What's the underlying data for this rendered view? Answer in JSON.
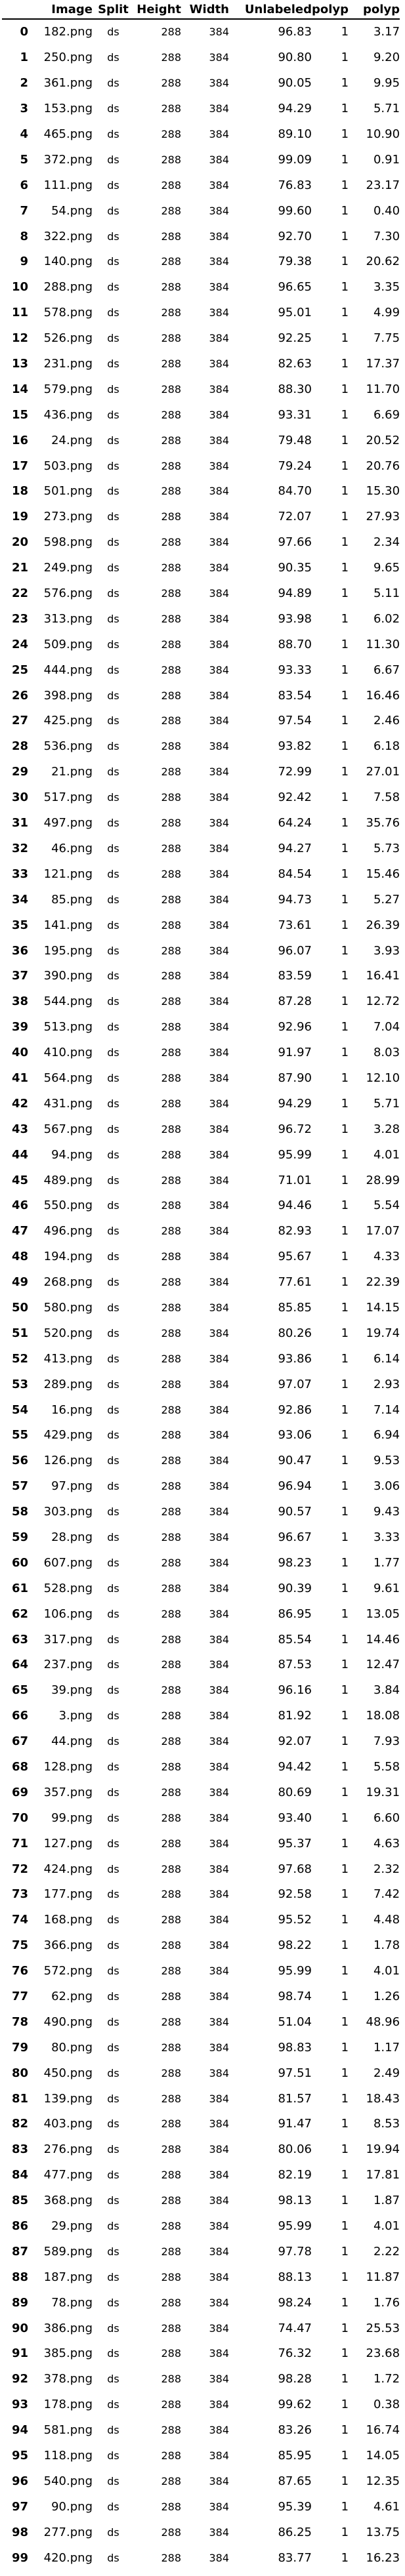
{
  "table": {
    "columns": [
      "",
      "Image",
      "Split",
      "Height",
      "Width",
      "Unlabeled",
      "polyp",
      "polyp"
    ],
    "rows": [
      [
        "0",
        "182.png",
        "ds",
        "288",
        "384",
        "96.83",
        "1",
        "3.17"
      ],
      [
        "1",
        "250.png",
        "ds",
        "288",
        "384",
        "90.80",
        "1",
        "9.20"
      ],
      [
        "2",
        "361.png",
        "ds",
        "288",
        "384",
        "90.05",
        "1",
        "9.95"
      ],
      [
        "3",
        "153.png",
        "ds",
        "288",
        "384",
        "94.29",
        "1",
        "5.71"
      ],
      [
        "4",
        "465.png",
        "ds",
        "288",
        "384",
        "89.10",
        "1",
        "10.90"
      ],
      [
        "5",
        "372.png",
        "ds",
        "288",
        "384",
        "99.09",
        "1",
        "0.91"
      ],
      [
        "6",
        "111.png",
        "ds",
        "288",
        "384",
        "76.83",
        "1",
        "23.17"
      ],
      [
        "7",
        "54.png",
        "ds",
        "288",
        "384",
        "99.60",
        "1",
        "0.40"
      ],
      [
        "8",
        "322.png",
        "ds",
        "288",
        "384",
        "92.70",
        "1",
        "7.30"
      ],
      [
        "9",
        "140.png",
        "ds",
        "288",
        "384",
        "79.38",
        "1",
        "20.62"
      ],
      [
        "10",
        "288.png",
        "ds",
        "288",
        "384",
        "96.65",
        "1",
        "3.35"
      ],
      [
        "11",
        "578.png",
        "ds",
        "288",
        "384",
        "95.01",
        "1",
        "4.99"
      ],
      [
        "12",
        "526.png",
        "ds",
        "288",
        "384",
        "92.25",
        "1",
        "7.75"
      ],
      [
        "13",
        "231.png",
        "ds",
        "288",
        "384",
        "82.63",
        "1",
        "17.37"
      ],
      [
        "14",
        "579.png",
        "ds",
        "288",
        "384",
        "88.30",
        "1",
        "11.70"
      ],
      [
        "15",
        "436.png",
        "ds",
        "288",
        "384",
        "93.31",
        "1",
        "6.69"
      ],
      [
        "16",
        "24.png",
        "ds",
        "288",
        "384",
        "79.48",
        "1",
        "20.52"
      ],
      [
        "17",
        "503.png",
        "ds",
        "288",
        "384",
        "79.24",
        "1",
        "20.76"
      ],
      [
        "18",
        "501.png",
        "ds",
        "288",
        "384",
        "84.70",
        "1",
        "15.30"
      ],
      [
        "19",
        "273.png",
        "ds",
        "288",
        "384",
        "72.07",
        "1",
        "27.93"
      ],
      [
        "20",
        "598.png",
        "ds",
        "288",
        "384",
        "97.66",
        "1",
        "2.34"
      ],
      [
        "21",
        "249.png",
        "ds",
        "288",
        "384",
        "90.35",
        "1",
        "9.65"
      ],
      [
        "22",
        "576.png",
        "ds",
        "288",
        "384",
        "94.89",
        "1",
        "5.11"
      ],
      [
        "23",
        "313.png",
        "ds",
        "288",
        "384",
        "93.98",
        "1",
        "6.02"
      ],
      [
        "24",
        "509.png",
        "ds",
        "288",
        "384",
        "88.70",
        "1",
        "11.30"
      ],
      [
        "25",
        "444.png",
        "ds",
        "288",
        "384",
        "93.33",
        "1",
        "6.67"
      ],
      [
        "26",
        "398.png",
        "ds",
        "288",
        "384",
        "83.54",
        "1",
        "16.46"
      ],
      [
        "27",
        "425.png",
        "ds",
        "288",
        "384",
        "97.54",
        "1",
        "2.46"
      ],
      [
        "28",
        "536.png",
        "ds",
        "288",
        "384",
        "93.82",
        "1",
        "6.18"
      ],
      [
        "29",
        "21.png",
        "ds",
        "288",
        "384",
        "72.99",
        "1",
        "27.01"
      ],
      [
        "30",
        "517.png",
        "ds",
        "288",
        "384",
        "92.42",
        "1",
        "7.58"
      ],
      [
        "31",
        "497.png",
        "ds",
        "288",
        "384",
        "64.24",
        "1",
        "35.76"
      ],
      [
        "32",
        "46.png",
        "ds",
        "288",
        "384",
        "94.27",
        "1",
        "5.73"
      ],
      [
        "33",
        "121.png",
        "ds",
        "288",
        "384",
        "84.54",
        "1",
        "15.46"
      ],
      [
        "34",
        "85.png",
        "ds",
        "288",
        "384",
        "94.73",
        "1",
        "5.27"
      ],
      [
        "35",
        "141.png",
        "ds",
        "288",
        "384",
        "73.61",
        "1",
        "26.39"
      ],
      [
        "36",
        "195.png",
        "ds",
        "288",
        "384",
        "96.07",
        "1",
        "3.93"
      ],
      [
        "37",
        "390.png",
        "ds",
        "288",
        "384",
        "83.59",
        "1",
        "16.41"
      ],
      [
        "38",
        "544.png",
        "ds",
        "288",
        "384",
        "87.28",
        "1",
        "12.72"
      ],
      [
        "39",
        "513.png",
        "ds",
        "288",
        "384",
        "92.96",
        "1",
        "7.04"
      ],
      [
        "40",
        "410.png",
        "ds",
        "288",
        "384",
        "91.97",
        "1",
        "8.03"
      ],
      [
        "41",
        "564.png",
        "ds",
        "288",
        "384",
        "87.90",
        "1",
        "12.10"
      ],
      [
        "42",
        "431.png",
        "ds",
        "288",
        "384",
        "94.29",
        "1",
        "5.71"
      ],
      [
        "43",
        "567.png",
        "ds",
        "288",
        "384",
        "96.72",
        "1",
        "3.28"
      ],
      [
        "44",
        "94.png",
        "ds",
        "288",
        "384",
        "95.99",
        "1",
        "4.01"
      ],
      [
        "45",
        "489.png",
        "ds",
        "288",
        "384",
        "71.01",
        "1",
        "28.99"
      ],
      [
        "46",
        "550.png",
        "ds",
        "288",
        "384",
        "94.46",
        "1",
        "5.54"
      ],
      [
        "47",
        "496.png",
        "ds",
        "288",
        "384",
        "82.93",
        "1",
        "17.07"
      ],
      [
        "48",
        "194.png",
        "ds",
        "288",
        "384",
        "95.67",
        "1",
        "4.33"
      ],
      [
        "49",
        "268.png",
        "ds",
        "288",
        "384",
        "77.61",
        "1",
        "22.39"
      ],
      [
        "50",
        "580.png",
        "ds",
        "288",
        "384",
        "85.85",
        "1",
        "14.15"
      ],
      [
        "51",
        "520.png",
        "ds",
        "288",
        "384",
        "80.26",
        "1",
        "19.74"
      ],
      [
        "52",
        "413.png",
        "ds",
        "288",
        "384",
        "93.86",
        "1",
        "6.14"
      ],
      [
        "53",
        "289.png",
        "ds",
        "288",
        "384",
        "97.07",
        "1",
        "2.93"
      ],
      [
        "54",
        "16.png",
        "ds",
        "288",
        "384",
        "92.86",
        "1",
        "7.14"
      ],
      [
        "55",
        "429.png",
        "ds",
        "288",
        "384",
        "93.06",
        "1",
        "6.94"
      ],
      [
        "56",
        "126.png",
        "ds",
        "288",
        "384",
        "90.47",
        "1",
        "9.53"
      ],
      [
        "57",
        "97.png",
        "ds",
        "288",
        "384",
        "96.94",
        "1",
        "3.06"
      ],
      [
        "58",
        "303.png",
        "ds",
        "288",
        "384",
        "90.57",
        "1",
        "9.43"
      ],
      [
        "59",
        "28.png",
        "ds",
        "288",
        "384",
        "96.67",
        "1",
        "3.33"
      ],
      [
        "60",
        "607.png",
        "ds",
        "288",
        "384",
        "98.23",
        "1",
        "1.77"
      ],
      [
        "61",
        "528.png",
        "ds",
        "288",
        "384",
        "90.39",
        "1",
        "9.61"
      ],
      [
        "62",
        "106.png",
        "ds",
        "288",
        "384",
        "86.95",
        "1",
        "13.05"
      ],
      [
        "63",
        "317.png",
        "ds",
        "288",
        "384",
        "85.54",
        "1",
        "14.46"
      ],
      [
        "64",
        "237.png",
        "ds",
        "288",
        "384",
        "87.53",
        "1",
        "12.47"
      ],
      [
        "65",
        "39.png",
        "ds",
        "288",
        "384",
        "96.16",
        "1",
        "3.84"
      ],
      [
        "66",
        "3.png",
        "ds",
        "288",
        "384",
        "81.92",
        "1",
        "18.08"
      ],
      [
        "67",
        "44.png",
        "ds",
        "288",
        "384",
        "92.07",
        "1",
        "7.93"
      ],
      [
        "68",
        "128.png",
        "ds",
        "288",
        "384",
        "94.42",
        "1",
        "5.58"
      ],
      [
        "69",
        "357.png",
        "ds",
        "288",
        "384",
        "80.69",
        "1",
        "19.31"
      ],
      [
        "70",
        "99.png",
        "ds",
        "288",
        "384",
        "93.40",
        "1",
        "6.60"
      ],
      [
        "71",
        "127.png",
        "ds",
        "288",
        "384",
        "95.37",
        "1",
        "4.63"
      ],
      [
        "72",
        "424.png",
        "ds",
        "288",
        "384",
        "97.68",
        "1",
        "2.32"
      ],
      [
        "73",
        "177.png",
        "ds",
        "288",
        "384",
        "92.58",
        "1",
        "7.42"
      ],
      [
        "74",
        "168.png",
        "ds",
        "288",
        "384",
        "95.52",
        "1",
        "4.48"
      ],
      [
        "75",
        "366.png",
        "ds",
        "288",
        "384",
        "98.22",
        "1",
        "1.78"
      ],
      [
        "76",
        "572.png",
        "ds",
        "288",
        "384",
        "95.99",
        "1",
        "4.01"
      ],
      [
        "77",
        "62.png",
        "ds",
        "288",
        "384",
        "98.74",
        "1",
        "1.26"
      ],
      [
        "78",
        "490.png",
        "ds",
        "288",
        "384",
        "51.04",
        "1",
        "48.96"
      ],
      [
        "79",
        "80.png",
        "ds",
        "288",
        "384",
        "98.83",
        "1",
        "1.17"
      ],
      [
        "80",
        "450.png",
        "ds",
        "288",
        "384",
        "97.51",
        "1",
        "2.49"
      ],
      [
        "81",
        "139.png",
        "ds",
        "288",
        "384",
        "81.57",
        "1",
        "18.43"
      ],
      [
        "82",
        "403.png",
        "ds",
        "288",
        "384",
        "91.47",
        "1",
        "8.53"
      ],
      [
        "83",
        "276.png",
        "ds",
        "288",
        "384",
        "80.06",
        "1",
        "19.94"
      ],
      [
        "84",
        "477.png",
        "ds",
        "288",
        "384",
        "82.19",
        "1",
        "17.81"
      ],
      [
        "85",
        "368.png",
        "ds",
        "288",
        "384",
        "98.13",
        "1",
        "1.87"
      ],
      [
        "86",
        "29.png",
        "ds",
        "288",
        "384",
        "95.99",
        "1",
        "4.01"
      ],
      [
        "87",
        "589.png",
        "ds",
        "288",
        "384",
        "97.78",
        "1",
        "2.22"
      ],
      [
        "88",
        "187.png",
        "ds",
        "288",
        "384",
        "88.13",
        "1",
        "11.87"
      ],
      [
        "89",
        "78.png",
        "ds",
        "288",
        "384",
        "98.24",
        "1",
        "1.76"
      ],
      [
        "90",
        "386.png",
        "ds",
        "288",
        "384",
        "74.47",
        "1",
        "25.53"
      ],
      [
        "91",
        "385.png",
        "ds",
        "288",
        "384",
        "76.32",
        "1",
        "23.68"
      ],
      [
        "92",
        "378.png",
        "ds",
        "288",
        "384",
        "98.28",
        "1",
        "1.72"
      ],
      [
        "93",
        "178.png",
        "ds",
        "288",
        "384",
        "99.62",
        "1",
        "0.38"
      ],
      [
        "94",
        "581.png",
        "ds",
        "288",
        "384",
        "83.26",
        "1",
        "16.74"
      ],
      [
        "95",
        "118.png",
        "ds",
        "288",
        "384",
        "85.95",
        "1",
        "14.05"
      ],
      [
        "96",
        "540.png",
        "ds",
        "288",
        "384",
        "87.65",
        "1",
        "12.35"
      ],
      [
        "97",
        "90.png",
        "ds",
        "288",
        "384",
        "95.39",
        "1",
        "4.61"
      ],
      [
        "98",
        "277.png",
        "ds",
        "288",
        "384",
        "86.25",
        "1",
        "13.75"
      ],
      [
        "99",
        "420.png",
        "ds",
        "288",
        "384",
        "83.77",
        "1",
        "16.23"
      ]
    ]
  }
}
